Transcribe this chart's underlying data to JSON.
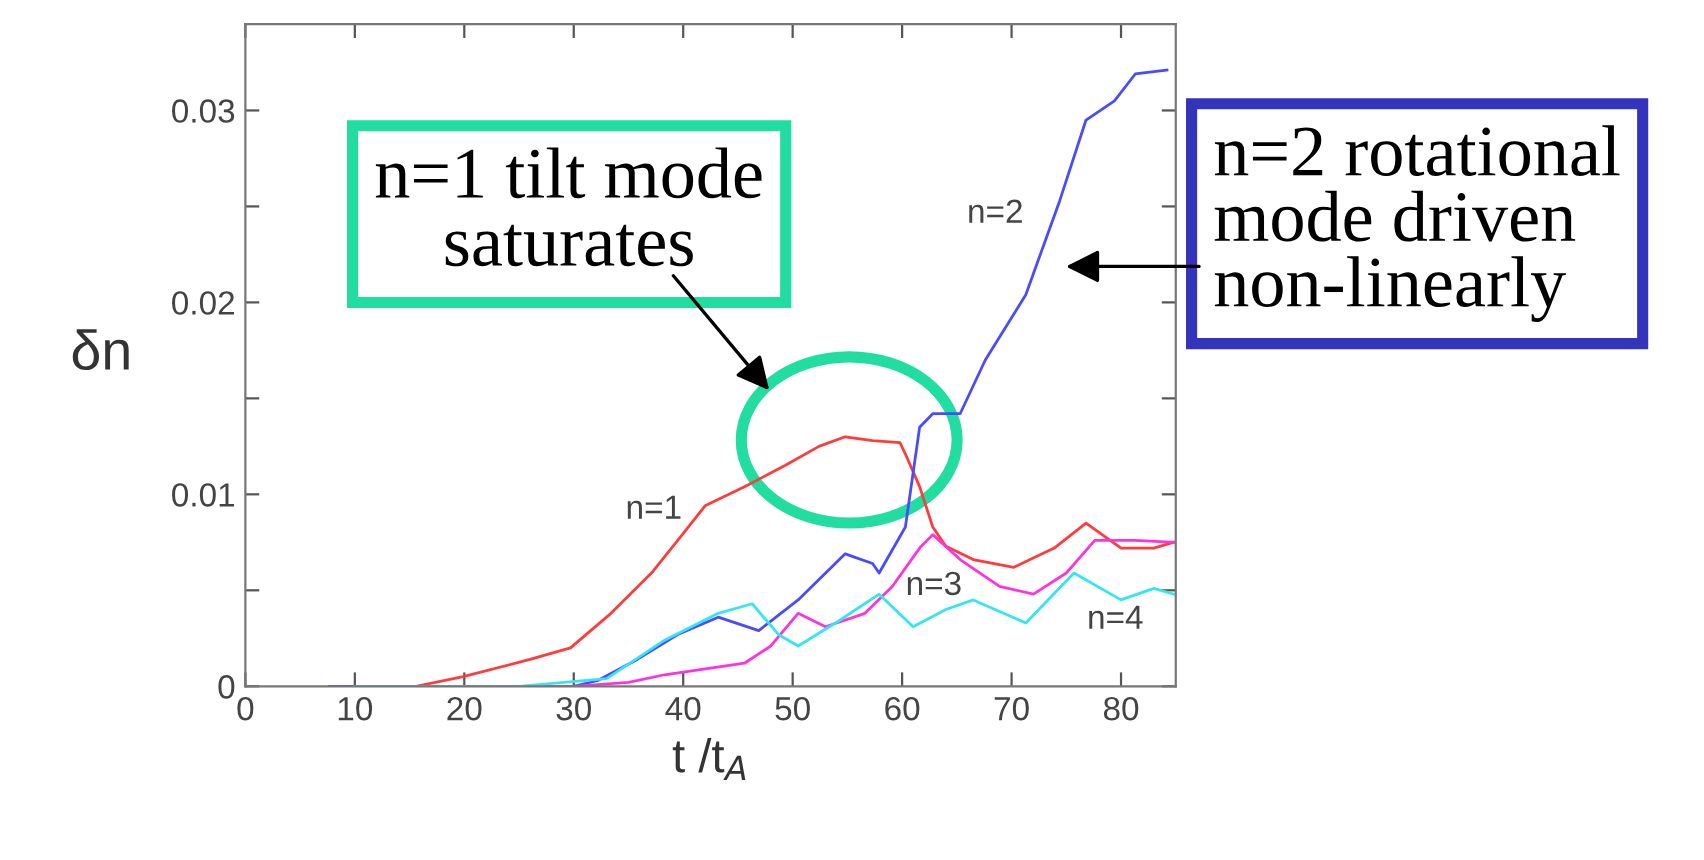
{
  "chart_data": {
    "type": "line",
    "xlabel": "t /t$_{A}$",
    "ylabel": "δn",
    "xlim": [
      0,
      85
    ],
    "ylim": [
      0,
      0.0345
    ],
    "xticks": [
      0,
      10,
      20,
      30,
      40,
      50,
      60,
      70,
      80
    ],
    "yticks": [
      0,
      {
        "value": 0.005,
        "label": null
      },
      0.01,
      {
        "value": 0.015,
        "label": null
      },
      0.02,
      {
        "value": 0.025,
        "label": null
      },
      0.03
    ],
    "grid": false,
    "legend": false,
    "marker": "none",
    "line_style": "solid",
    "series": [
      {
        "name": "n=1",
        "color": "#ff3b3b",
        "x": [
          7.7,
          15.6,
          19.9,
          26,
          29.7,
          33.4,
          37.1,
          39.5,
          42,
          45.6,
          49.3,
          52.4,
          54.8,
          57.3,
          59.8,
          60.3,
          61.6,
          62.8,
          64,
          66.5,
          70.2,
          73.9,
          76.8,
          80,
          83,
          84.8
        ],
        "values": [
          0,
          0,
          0.0005,
          0.0014,
          0.002,
          0.0038,
          0.0059,
          0.0076,
          0.0094,
          0.0104,
          0.0115,
          0.0125,
          0.013,
          0.0128,
          0.0127,
          0.0121,
          0.0104,
          0.0083,
          0.0073,
          0.0066,
          0.0062,
          0.0072,
          0.0085,
          0.0072,
          0.0072,
          0.0075
        ]
      },
      {
        "name": "n=2",
        "color": "#4a4aff",
        "x": [
          7.7,
          20,
          30,
          32.2,
          35.8,
          39.5,
          43.2,
          46.9,
          50.5,
          54.8,
          57.3,
          57.9,
          60.3,
          61.6,
          62.8,
          65.3,
          67.6,
          71.3,
          74.4,
          76.8,
          79.4,
          81.3,
          84.2
        ],
        "values": [
          0,
          0,
          0,
          0.0003,
          0.0014,
          0.0027,
          0.0036,
          0.0029,
          0.0045,
          0.0069,
          0.0064,
          0.0059,
          0.0083,
          0.0135,
          0.0142,
          0.0142,
          0.017,
          0.0204,
          0.0253,
          0.0295,
          0.0305,
          0.0319,
          0.0321
        ]
      },
      {
        "name": "n=3",
        "color": "#ff33dd",
        "x": [
          10,
          30,
          35,
          38.3,
          45.6,
          48,
          50.5,
          53,
          56.6,
          59.1,
          61.6,
          62.8,
          65.3,
          68.9,
          72,
          75,
          77.6,
          81.3,
          84.8
        ],
        "values": [
          0,
          0,
          0.0002,
          0.0006,
          0.0012,
          0.0021,
          0.0038,
          0.0031,
          0.0038,
          0.0052,
          0.0072,
          0.0079,
          0.0066,
          0.0052,
          0.0048,
          0.0059,
          0.0076,
          0.0076,
          0.0075
        ]
      },
      {
        "name": "n=4",
        "color": "#33e6f2",
        "x": [
          10,
          25,
          33,
          38.3,
          43.2,
          46.3,
          48.7,
          50.5,
          54.2,
          57.9,
          61,
          64,
          66.5,
          71.3,
          75.7,
          80,
          83,
          84.8
        ],
        "values": [
          0,
          0,
          0.0004,
          0.0024,
          0.0038,
          0.0043,
          0.0027,
          0.0021,
          0.0034,
          0.0048,
          0.0031,
          0.004,
          0.0045,
          0.0033,
          0.0059,
          0.0045,
          0.0051,
          0.0048
        ]
      }
    ],
    "annotations": [
      "n=1 tilt mode\nsaturates",
      "n=2 rotational\nmode driven\nnon-linearly"
    ]
  }
}
